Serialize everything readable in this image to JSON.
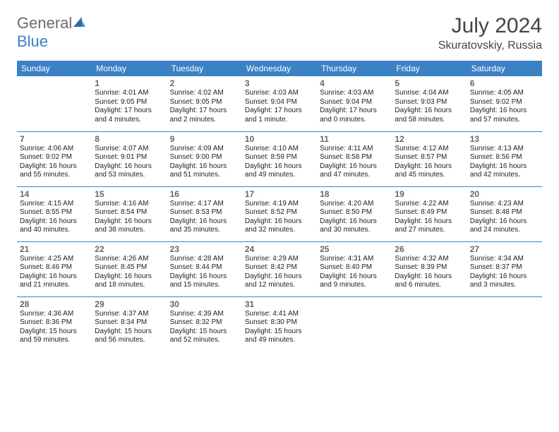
{
  "brand": {
    "g": "General",
    "b": "Blue"
  },
  "title": "July 2024",
  "location": "Skuratovskiy, Russia",
  "weekdays": [
    "Sunday",
    "Monday",
    "Tuesday",
    "Wednesday",
    "Thursday",
    "Friday",
    "Saturday"
  ],
  "colors": {
    "header_bg": "#3b82c4",
    "header_text": "#ffffff",
    "border": "#3b82c4",
    "text": "#222222",
    "daynum": "#666666",
    "title": "#444444"
  },
  "weeks": [
    [
      null,
      {
        "n": "1",
        "sr": "Sunrise: 4:01 AM",
        "ss": "Sunset: 9:05 PM",
        "dl": "Daylight: 17 hours and 4 minutes."
      },
      {
        "n": "2",
        "sr": "Sunrise: 4:02 AM",
        "ss": "Sunset: 9:05 PM",
        "dl": "Daylight: 17 hours and 2 minutes."
      },
      {
        "n": "3",
        "sr": "Sunrise: 4:03 AM",
        "ss": "Sunset: 9:04 PM",
        "dl": "Daylight: 17 hours and 1 minute."
      },
      {
        "n": "4",
        "sr": "Sunrise: 4:03 AM",
        "ss": "Sunset: 9:04 PM",
        "dl": "Daylight: 17 hours and 0 minutes."
      },
      {
        "n": "5",
        "sr": "Sunrise: 4:04 AM",
        "ss": "Sunset: 9:03 PM",
        "dl": "Daylight: 16 hours and 58 minutes."
      },
      {
        "n": "6",
        "sr": "Sunrise: 4:05 AM",
        "ss": "Sunset: 9:02 PM",
        "dl": "Daylight: 16 hours and 57 minutes."
      }
    ],
    [
      {
        "n": "7",
        "sr": "Sunrise: 4:06 AM",
        "ss": "Sunset: 9:02 PM",
        "dl": "Daylight: 16 hours and 55 minutes."
      },
      {
        "n": "8",
        "sr": "Sunrise: 4:07 AM",
        "ss": "Sunset: 9:01 PM",
        "dl": "Daylight: 16 hours and 53 minutes."
      },
      {
        "n": "9",
        "sr": "Sunrise: 4:09 AM",
        "ss": "Sunset: 9:00 PM",
        "dl": "Daylight: 16 hours and 51 minutes."
      },
      {
        "n": "10",
        "sr": "Sunrise: 4:10 AM",
        "ss": "Sunset: 8:59 PM",
        "dl": "Daylight: 16 hours and 49 minutes."
      },
      {
        "n": "11",
        "sr": "Sunrise: 4:11 AM",
        "ss": "Sunset: 8:58 PM",
        "dl": "Daylight: 16 hours and 47 minutes."
      },
      {
        "n": "12",
        "sr": "Sunrise: 4:12 AM",
        "ss": "Sunset: 8:57 PM",
        "dl": "Daylight: 16 hours and 45 minutes."
      },
      {
        "n": "13",
        "sr": "Sunrise: 4:13 AM",
        "ss": "Sunset: 8:56 PM",
        "dl": "Daylight: 16 hours and 42 minutes."
      }
    ],
    [
      {
        "n": "14",
        "sr": "Sunrise: 4:15 AM",
        "ss": "Sunset: 8:55 PM",
        "dl": "Daylight: 16 hours and 40 minutes."
      },
      {
        "n": "15",
        "sr": "Sunrise: 4:16 AM",
        "ss": "Sunset: 8:54 PM",
        "dl": "Daylight: 16 hours and 38 minutes."
      },
      {
        "n": "16",
        "sr": "Sunrise: 4:17 AM",
        "ss": "Sunset: 8:53 PM",
        "dl": "Daylight: 16 hours and 35 minutes."
      },
      {
        "n": "17",
        "sr": "Sunrise: 4:19 AM",
        "ss": "Sunset: 8:52 PM",
        "dl": "Daylight: 16 hours and 32 minutes."
      },
      {
        "n": "18",
        "sr": "Sunrise: 4:20 AM",
        "ss": "Sunset: 8:50 PM",
        "dl": "Daylight: 16 hours and 30 minutes."
      },
      {
        "n": "19",
        "sr": "Sunrise: 4:22 AM",
        "ss": "Sunset: 8:49 PM",
        "dl": "Daylight: 16 hours and 27 minutes."
      },
      {
        "n": "20",
        "sr": "Sunrise: 4:23 AM",
        "ss": "Sunset: 8:48 PM",
        "dl": "Daylight: 16 hours and 24 minutes."
      }
    ],
    [
      {
        "n": "21",
        "sr": "Sunrise: 4:25 AM",
        "ss": "Sunset: 8:46 PM",
        "dl": "Daylight: 16 hours and 21 minutes."
      },
      {
        "n": "22",
        "sr": "Sunrise: 4:26 AM",
        "ss": "Sunset: 8:45 PM",
        "dl": "Daylight: 16 hours and 18 minutes."
      },
      {
        "n": "23",
        "sr": "Sunrise: 4:28 AM",
        "ss": "Sunset: 8:44 PM",
        "dl": "Daylight: 16 hours and 15 minutes."
      },
      {
        "n": "24",
        "sr": "Sunrise: 4:29 AM",
        "ss": "Sunset: 8:42 PM",
        "dl": "Daylight: 16 hours and 12 minutes."
      },
      {
        "n": "25",
        "sr": "Sunrise: 4:31 AM",
        "ss": "Sunset: 8:40 PM",
        "dl": "Daylight: 16 hours and 9 minutes."
      },
      {
        "n": "26",
        "sr": "Sunrise: 4:32 AM",
        "ss": "Sunset: 8:39 PM",
        "dl": "Daylight: 16 hours and 6 minutes."
      },
      {
        "n": "27",
        "sr": "Sunrise: 4:34 AM",
        "ss": "Sunset: 8:37 PM",
        "dl": "Daylight: 16 hours and 3 minutes."
      }
    ],
    [
      {
        "n": "28",
        "sr": "Sunrise: 4:36 AM",
        "ss": "Sunset: 8:36 PM",
        "dl": "Daylight: 15 hours and 59 minutes."
      },
      {
        "n": "29",
        "sr": "Sunrise: 4:37 AM",
        "ss": "Sunset: 8:34 PM",
        "dl": "Daylight: 15 hours and 56 minutes."
      },
      {
        "n": "30",
        "sr": "Sunrise: 4:39 AM",
        "ss": "Sunset: 8:32 PM",
        "dl": "Daylight: 15 hours and 52 minutes."
      },
      {
        "n": "31",
        "sr": "Sunrise: 4:41 AM",
        "ss": "Sunset: 8:30 PM",
        "dl": "Daylight: 15 hours and 49 minutes."
      },
      null,
      null,
      null
    ]
  ]
}
